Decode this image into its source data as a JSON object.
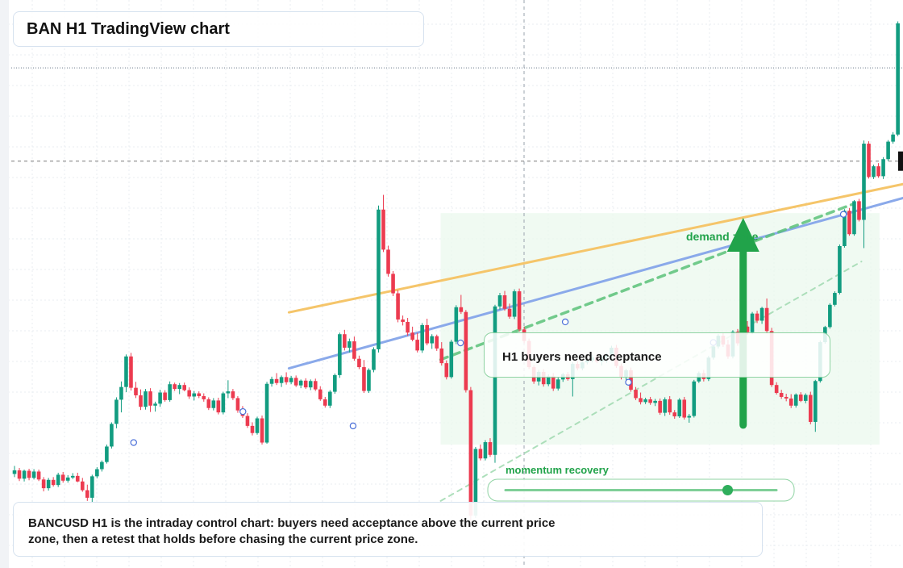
{
  "header": {
    "title": "BAN H1 TradingView chart"
  },
  "callout": {
    "text": "H1 buyers need acceptance"
  },
  "caption": {
    "text": "BANCUSD H1 is the intraday control chart: buyers need acceptance above the current price zone, then a retest that holds before chasing the current price zone."
  },
  "annotations": {
    "demand": "demand zone",
    "momentum": "momentum recovery"
  },
  "colors": {
    "up": "#129c80",
    "down": "#ec3b50",
    "orange_line": "#f5c56a",
    "blue_line": "#8aa9ea",
    "green": "#21a34a",
    "zone": "#e9f8ec"
  },
  "chart_data": {
    "type": "candlestick",
    "timeframe": "H1",
    "ylim": [
      0,
      100
    ],
    "candles": [
      [
        5.0,
        7.0,
        4.2,
        5.9
      ],
      [
        5.9,
        6.5,
        3.2,
        3.8
      ],
      [
        3.8,
        6.1,
        3.1,
        5.8
      ],
      [
        5.8,
        6.3,
        3.4,
        4.0
      ],
      [
        4.0,
        6.2,
        3.6,
        5.6
      ],
      [
        5.6,
        6.1,
        3.2,
        3.6
      ],
      [
        3.6,
        4.2,
        0.6,
        1.4
      ],
      [
        1.4,
        4.0,
        0.8,
        3.5
      ],
      [
        3.5,
        4.2,
        1.8,
        2.2
      ],
      [
        2.2,
        5.3,
        1.7,
        4.8
      ],
      [
        4.8,
        5.5,
        2.8,
        3.3
      ],
      [
        3.3,
        4.7,
        2.8,
        4.1
      ],
      [
        4.1,
        5.2,
        3.7,
        4.5
      ],
      [
        4.5,
        5.3,
        2.9,
        3.1
      ],
      [
        3.1,
        4.0,
        0.5,
        0.9
      ],
      [
        0.9,
        2.3,
        -1.8,
        -1.0
      ],
      [
        -1.0,
        4.8,
        -2.4,
        4.4
      ],
      [
        4.4,
        6.7,
        3.9,
        6.2
      ],
      [
        6.2,
        8.4,
        5.6,
        8.0
      ],
      [
        8.0,
        12.4,
        7.6,
        11.9
      ],
      [
        11.9,
        18.0,
        11.4,
        17.6
      ],
      [
        17.6,
        24.3,
        16.5,
        23.7
      ],
      [
        23.7,
        28.3,
        20.5,
        26.9
      ],
      [
        26.9,
        35.1,
        25.6,
        34.6
      ],
      [
        34.6,
        35.5,
        26.0,
        26.7
      ],
      [
        26.7,
        28.2,
        24.1,
        24.8
      ],
      [
        24.8,
        26.3,
        21.1,
        21.9
      ],
      [
        21.9,
        26.4,
        21.2,
        25.8
      ],
      [
        25.8,
        26.6,
        20.6,
        22.2
      ],
      [
        22.2,
        23.2,
        20.7,
        22.7
      ],
      [
        22.7,
        26.2,
        21.9,
        25.5
      ],
      [
        25.5,
        26.1,
        23.2,
        23.6
      ],
      [
        23.6,
        28.3,
        23.2,
        27.6
      ],
      [
        27.6,
        28.0,
        25.9,
        26.4
      ],
      [
        26.4,
        27.9,
        25.1,
        27.4
      ],
      [
        27.4,
        28.0,
        25.8,
        26.1
      ],
      [
        26.1,
        26.8,
        23.9,
        24.5
      ],
      [
        24.5,
        25.9,
        23.5,
        25.3
      ],
      [
        25.3,
        25.8,
        24.1,
        24.6
      ],
      [
        24.6,
        25.3,
        23.2,
        23.8
      ],
      [
        23.8,
        24.3,
        21.1,
        21.6
      ],
      [
        21.6,
        24.1,
        21.0,
        23.5
      ],
      [
        23.5,
        24.2,
        20.0,
        20.5
      ],
      [
        20.5,
        25.7,
        20.0,
        25.3
      ],
      [
        25.3,
        28.6,
        24.1,
        25.8
      ],
      [
        25.8,
        26.4,
        23.6,
        24.1
      ],
      [
        24.1,
        24.6,
        20.4,
        21.0
      ],
      [
        21.0,
        22.1,
        19.1,
        19.6
      ],
      [
        19.6,
        20.3,
        16.6,
        17.1
      ],
      [
        17.1,
        18.0,
        14.7,
        15.3
      ],
      [
        15.3,
        19.4,
        14.9,
        19.0
      ],
      [
        19.0,
        19.7,
        12.4,
        12.9
      ],
      [
        12.9,
        28.2,
        12.6,
        27.7
      ],
      [
        27.7,
        29.5,
        27.0,
        28.9
      ],
      [
        28.9,
        30.4,
        27.4,
        27.9
      ],
      [
        27.9,
        29.8,
        26.9,
        29.4
      ],
      [
        29.4,
        30.6,
        27.5,
        28.1
      ],
      [
        28.1,
        29.7,
        27.6,
        29.2
      ],
      [
        29.2,
        29.8,
        26.9,
        27.3
      ],
      [
        27.3,
        28.8,
        26.6,
        28.5
      ],
      [
        28.5,
        29.1,
        26.4,
        26.8
      ],
      [
        26.8,
        28.8,
        26.1,
        28.4
      ],
      [
        28.4,
        29.0,
        25.9,
        26.3
      ],
      [
        26.3,
        27.1,
        23.4,
        23.8
      ],
      [
        23.8,
        24.4,
        21.7,
        22.2
      ],
      [
        22.2,
        26.1,
        21.6,
        25.7
      ],
      [
        25.7,
        30.3,
        25.2,
        29.9
      ],
      [
        29.9,
        40.6,
        29.2,
        40.2
      ],
      [
        40.2,
        41.3,
        36.1,
        36.8
      ],
      [
        36.8,
        39.1,
        35.6,
        38.4
      ],
      [
        38.4,
        39.6,
        33.5,
        34.0
      ],
      [
        34.0,
        34.8,
        31.4,
        31.9
      ],
      [
        31.9,
        33.7,
        25.4,
        25.9
      ],
      [
        25.9,
        31.6,
        25.4,
        31.2
      ],
      [
        31.2,
        36.9,
        30.6,
        36.4
      ],
      [
        36.4,
        72.6,
        35.6,
        71.6
      ],
      [
        71.6,
        75.3,
        60.9,
        61.5
      ],
      [
        61.5,
        62.5,
        54.7,
        55.4
      ],
      [
        55.4,
        56.1,
        49.8,
        50.5
      ],
      [
        50.5,
        51.3,
        43.2,
        43.9
      ],
      [
        43.9,
        44.9,
        42.4,
        43.3
      ],
      [
        43.3,
        44.3,
        39.8,
        40.6
      ],
      [
        40.6,
        42.1,
        38.4,
        38.8
      ],
      [
        38.8,
        40.5,
        35.6,
        36.1
      ],
      [
        36.1,
        43.0,
        35.5,
        42.5
      ],
      [
        42.5,
        44.1,
        37.4,
        37.9
      ],
      [
        37.9,
        40.2,
        36.5,
        39.7
      ],
      [
        39.7,
        40.1,
        36.0,
        36.6
      ],
      [
        36.6,
        38.2,
        32.3,
        32.9
      ],
      [
        32.9,
        33.6,
        28.8,
        29.4
      ],
      [
        29.4,
        38.8,
        29.0,
        38.3
      ],
      [
        38.3,
        47.5,
        37.7,
        47.0
      ],
      [
        47.0,
        50.1,
        45.3,
        45.8
      ],
      [
        45.8,
        46.3,
        25.5,
        26.1
      ],
      [
        26.1,
        26.9,
        -7.0,
        -5.5
      ],
      [
        -5.5,
        11.8,
        -6.1,
        11.3
      ],
      [
        11.3,
        12.4,
        8.4,
        8.9
      ],
      [
        8.9,
        13.5,
        8.4,
        13.0
      ],
      [
        13.0,
        14.0,
        9.3,
        9.8
      ],
      [
        9.8,
        47.6,
        7.8,
        47.2
      ],
      [
        47.2,
        50.6,
        46.4,
        50.0
      ],
      [
        50.0,
        51.1,
        46.1,
        46.6
      ],
      [
        46.6,
        47.9,
        44.1,
        44.6
      ],
      [
        44.6,
        51.5,
        44.0,
        51.0
      ],
      [
        51.0,
        51.7,
        40.9,
        41.4
      ],
      [
        41.4,
        42.1,
        37.9,
        38.5
      ],
      [
        38.5,
        39.1,
        31.4,
        31.9
      ],
      [
        31.9,
        32.4,
        27.7,
        28.3
      ],
      [
        28.3,
        31.2,
        27.3,
        30.7
      ],
      [
        30.7,
        31.4,
        27.0,
        27.6
      ],
      [
        27.6,
        30.1,
        27.1,
        29.6
      ],
      [
        29.6,
        30.4,
        25.9,
        26.5
      ],
      [
        26.5,
        29.4,
        26.0,
        28.8
      ],
      [
        28.8,
        30.5,
        28.2,
        30.1
      ],
      [
        30.1,
        30.7,
        28.5,
        28.9
      ],
      [
        28.9,
        33.2,
        24.5,
        32.7
      ],
      [
        32.7,
        33.4,
        31.1,
        31.6
      ],
      [
        31.6,
        33.5,
        31.1,
        33.1
      ],
      [
        33.1,
        34.1,
        32.6,
        33.6
      ],
      [
        33.6,
        35.0,
        33.1,
        34.4
      ],
      [
        34.4,
        35.1,
        32.9,
        33.3
      ],
      [
        33.3,
        34.7,
        32.3,
        34.3
      ],
      [
        34.3,
        35.5,
        33.0,
        35.0
      ],
      [
        35.0,
        37.3,
        34.3,
        36.8
      ],
      [
        36.8,
        37.5,
        31.7,
        32.2
      ],
      [
        32.2,
        32.8,
        28.8,
        29.3
      ],
      [
        29.3,
        31.5,
        28.7,
        31.1
      ],
      [
        31.1,
        31.8,
        25.7,
        26.2
      ],
      [
        26.2,
        26.9,
        23.6,
        24.1
      ],
      [
        24.1,
        25.5,
        22.5,
        23.1
      ],
      [
        23.1,
        24.2,
        22.6,
        23.8
      ],
      [
        23.8,
        24.4,
        22.4,
        22.9
      ],
      [
        22.9,
        23.9,
        22.1,
        23.4
      ],
      [
        23.4,
        24.0,
        19.9,
        20.4
      ],
      [
        20.4,
        24.3,
        19.6,
        23.8
      ],
      [
        23.8,
        24.6,
        19.9,
        20.5
      ],
      [
        20.5,
        21.1,
        18.9,
        19.5
      ],
      [
        19.5,
        24.1,
        19.1,
        23.7
      ],
      [
        23.7,
        24.4,
        18.7,
        19.2
      ],
      [
        19.2,
        20.1,
        17.9,
        19.6
      ],
      [
        19.6,
        28.7,
        19.2,
        28.3
      ],
      [
        28.3,
        30.8,
        27.9,
        30.4
      ],
      [
        30.4,
        31.2,
        28.3,
        28.9
      ],
      [
        28.9,
        34.7,
        28.4,
        34.3
      ],
      [
        34.3,
        37.6,
        33.8,
        37.1
      ],
      [
        37.1,
        40.2,
        36.6,
        39.8
      ],
      [
        39.8,
        40.5,
        37.0,
        37.6
      ],
      [
        37.6,
        38.8,
        34.0,
        34.6
      ],
      [
        34.6,
        41.2,
        34.1,
        40.8
      ],
      [
        40.8,
        41.5,
        37.3,
        37.9
      ],
      [
        37.9,
        42.5,
        37.4,
        42.1
      ],
      [
        42.1,
        43.5,
        40.1,
        40.7
      ],
      [
        40.7,
        45.8,
        40.2,
        45.4
      ],
      [
        45.4,
        46.1,
        43.0,
        43.6
      ],
      [
        43.6,
        47.1,
        42.8,
        46.8
      ],
      [
        46.8,
        49.2,
        40.4,
        41.0
      ],
      [
        41.0,
        41.8,
        26.9,
        27.4
      ],
      [
        27.4,
        28.1,
        25.0,
        25.4
      ],
      [
        25.4,
        26.2,
        23.9,
        24.4
      ],
      [
        24.4,
        25.2,
        23.3,
        24.0
      ],
      [
        24.0,
        25.1,
        21.6,
        22.2
      ],
      [
        22.2,
        25.3,
        21.7,
        25.0
      ],
      [
        25.0,
        25.6,
        23.1,
        23.4
      ],
      [
        23.4,
        25.3,
        22.8,
        24.9
      ],
      [
        24.9,
        25.7,
        17.5,
        18.1
      ],
      [
        18.1,
        28.7,
        15.6,
        28.4
      ],
      [
        28.4,
        38.6,
        28.0,
        38.2
      ],
      [
        38.2,
        42.3,
        37.8,
        42.0
      ],
      [
        42.0,
        48.0,
        41.6,
        47.6
      ],
      [
        47.6,
        51.0,
        47.2,
        50.6
      ],
      [
        50.6,
        62.8,
        50.2,
        62.4
      ],
      [
        62.4,
        71.7,
        62.0,
        71.3
      ],
      [
        71.3,
        72.0,
        65.0,
        65.4
      ],
      [
        65.4,
        74.0,
        65.0,
        73.7
      ],
      [
        73.7,
        74.3,
        68.6,
        69.0
      ],
      [
        69.0,
        89.0,
        61.9,
        88.2
      ],
      [
        88.2,
        88.8,
        79.4,
        79.8
      ],
      [
        79.8,
        82.9,
        79.3,
        82.5
      ],
      [
        82.5,
        83.3,
        79.6,
        80.0
      ],
      [
        80.0,
        84.8,
        79.3,
        84.3
      ],
      [
        84.3,
        89.1,
        83.8,
        88.7
      ],
      [
        88.7,
        91.1,
        88.2,
        90.5
      ],
      [
        90.5,
        119.0,
        90.1,
        118.5
      ]
    ],
    "lines": [
      {
        "name": "orange trendline",
        "from": [
          0.32,
          45.7
        ],
        "to": [
          1.0,
          78.0
        ]
      },
      {
        "name": "blue trendline",
        "from": [
          0.32,
          31.6
        ],
        "to": [
          1.0,
          74.5
        ]
      },
      {
        "name": "green dashed trendline",
        "from": [
          0.488,
          33.8
        ],
        "to": [
          0.946,
          73.1
        ]
      },
      {
        "name": "light green dashed trendline",
        "from": [
          0.488,
          -1.8
        ],
        "to": [
          0.954,
          58.5
        ]
      }
    ],
    "markers": [
      [
        0.148,
        12.9
      ],
      [
        0.269,
        20.7
      ],
      [
        0.391,
        17.1
      ],
      [
        0.51,
        38.0
      ],
      [
        0.626,
        43.3
      ],
      [
        0.696,
        28.1
      ],
      [
        0.79,
        38.1
      ],
      [
        0.934,
        70.4
      ]
    ],
    "demand_zone": {
      "x": [
        0.488,
        0.974
      ],
      "y": [
        12.4,
        70.7
      ]
    },
    "arrow": {
      "x": 0.823,
      "y_from": 17.3,
      "y_to": 69.5
    },
    "momentum_slider": {
      "value": 0.82
    },
    "reference_levels": {
      "dotted": 107.3,
      "crosshair": 83.8
    }
  }
}
